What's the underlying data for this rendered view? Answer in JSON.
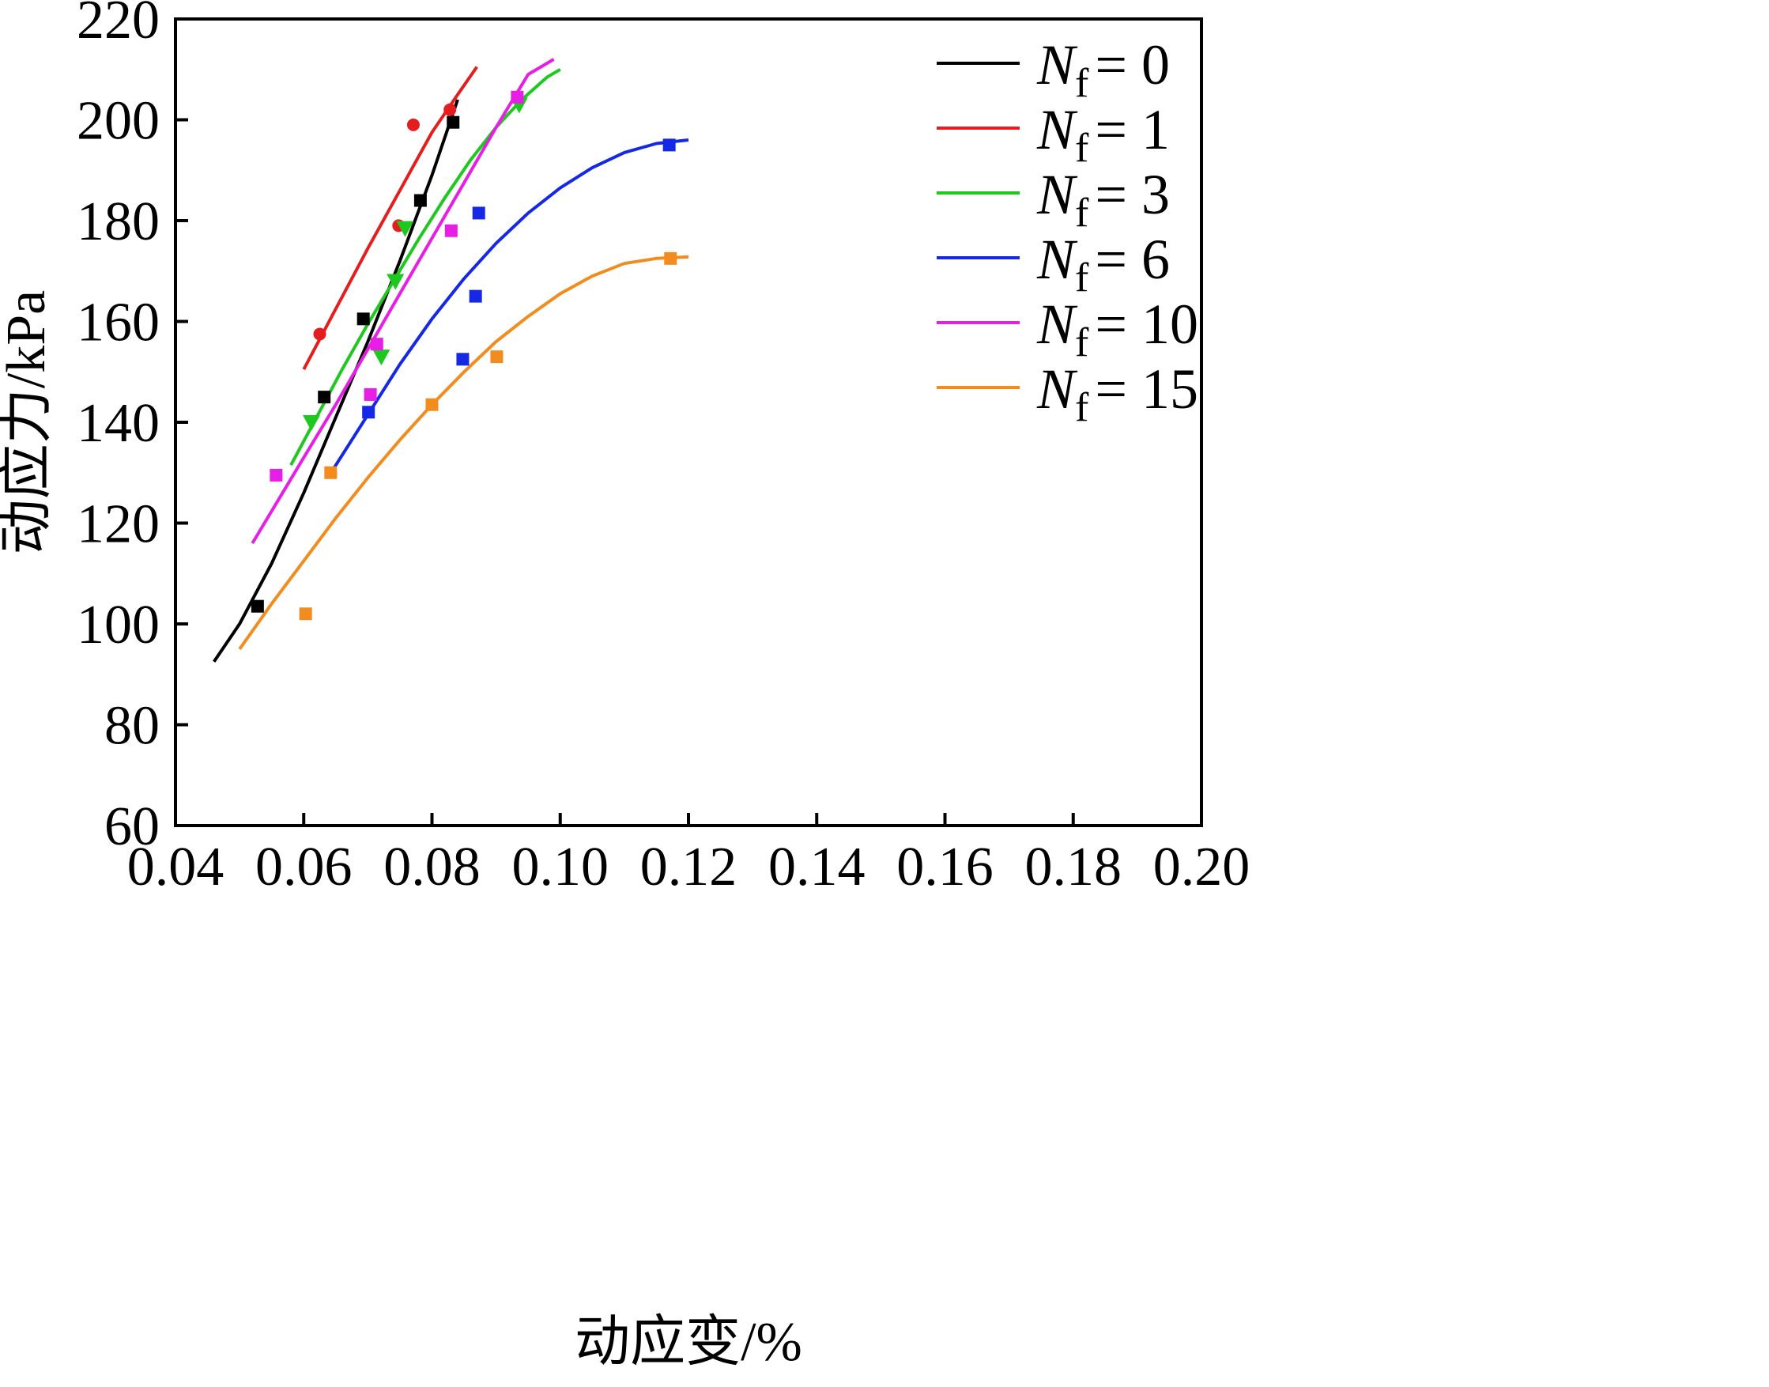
{
  "chart_data": {
    "type": "scatter",
    "title": "",
    "xlabel": "动应变/%",
    "ylabel": "动应力/kPa",
    "xlim": [
      0.04,
      0.2
    ],
    "ylim": [
      60,
      220
    ],
    "xticks": [
      0.04,
      0.06,
      0.08,
      0.1,
      0.12,
      0.14,
      0.16,
      0.18,
      0.2
    ],
    "xtick_labels": [
      "0.04",
      "0.06",
      "0.08",
      "0.10",
      "0.12",
      "0.14",
      "0.16",
      "0.18",
      "0.20"
    ],
    "yticks": [
      60,
      80,
      100,
      120,
      140,
      160,
      180,
      200,
      220
    ],
    "ytick_labels": [
      "60",
      "80",
      "100",
      "120",
      "140",
      "160",
      "180",
      "200",
      "220"
    ],
    "legend_position": "top-right",
    "series": [
      {
        "name": "N_f = 0",
        "legend_main": "N",
        "legend_sub": "f",
        "legend_value": "= 0",
        "color": "#000000",
        "marker": "square",
        "points": [
          [
            0.0528,
            103.5
          ],
          [
            0.0632,
            145.0
          ],
          [
            0.0693,
            160.5
          ],
          [
            0.0782,
            184.0
          ],
          [
            0.0833,
            199.5
          ]
        ],
        "fit": [
          [
            0.046,
            92.5
          ],
          [
            0.05,
            100.0
          ],
          [
            0.055,
            112.0
          ],
          [
            0.06,
            126.0
          ],
          [
            0.065,
            141.0
          ],
          [
            0.07,
            156.0
          ],
          [
            0.075,
            172.0
          ],
          [
            0.08,
            189.0
          ],
          [
            0.084,
            204.0
          ]
        ]
      },
      {
        "name": "N_f = 1",
        "legend_main": "N",
        "legend_sub": "f",
        "legend_value": "= 1",
        "color": "#e41e1e",
        "marker": "circle",
        "points": [
          [
            0.0625,
            157.5
          ],
          [
            0.0748,
            179.0
          ],
          [
            0.0771,
            199.0
          ],
          [
            0.0828,
            202.0
          ]
        ],
        "fit": [
          [
            0.06,
            150.5
          ],
          [
            0.065,
            162.5
          ],
          [
            0.07,
            174.5
          ],
          [
            0.075,
            186.0
          ],
          [
            0.08,
            197.5
          ],
          [
            0.084,
            205.0
          ],
          [
            0.087,
            210.5
          ]
        ]
      },
      {
        "name": "N_f = 3",
        "legend_main": "N",
        "legend_sub": "f",
        "legend_value": "= 3",
        "color": "#1ec81e",
        "marker": "triangle-down",
        "points": [
          [
            0.0612,
            140.0
          ],
          [
            0.0721,
            153.0
          ],
          [
            0.0743,
            168.0
          ],
          [
            0.0758,
            178.5
          ],
          [
            0.0936,
            203.0
          ]
        ],
        "fit": [
          [
            0.058,
            131.5
          ],
          [
            0.062,
            141.0
          ],
          [
            0.066,
            150.5
          ],
          [
            0.07,
            159.5
          ],
          [
            0.074,
            168.0
          ],
          [
            0.078,
            176.5
          ],
          [
            0.082,
            184.5
          ],
          [
            0.086,
            192.0
          ],
          [
            0.09,
            198.5
          ],
          [
            0.094,
            204.0
          ],
          [
            0.098,
            208.5
          ],
          [
            0.1,
            210.0
          ]
        ]
      },
      {
        "name": "N_f = 6",
        "legend_main": "N",
        "legend_sub": "f",
        "legend_value": "= 6",
        "color": "#1428e6",
        "marker": "square",
        "points": [
          [
            0.0701,
            142.0
          ],
          [
            0.0848,
            152.5
          ],
          [
            0.0868,
            165.0
          ],
          [
            0.0873,
            181.5
          ],
          [
            0.117,
            195.0
          ]
        ],
        "fit": [
          [
            0.0645,
            130.5
          ],
          [
            0.07,
            141.5
          ],
          [
            0.075,
            151.5
          ],
          [
            0.08,
            160.5
          ],
          [
            0.085,
            168.5
          ],
          [
            0.09,
            175.5
          ],
          [
            0.095,
            181.5
          ],
          [
            0.1,
            186.5
          ],
          [
            0.105,
            190.5
          ],
          [
            0.11,
            193.5
          ],
          [
            0.115,
            195.3
          ],
          [
            0.12,
            196.0
          ]
        ]
      },
      {
        "name": "N_f = 10",
        "legend_main": "N",
        "legend_sub": "f",
        "legend_value": "= 10",
        "color": "#e61ee6",
        "marker": "square",
        "points": [
          [
            0.0557,
            129.5
          ],
          [
            0.0704,
            145.5
          ],
          [
            0.0714,
            155.5
          ],
          [
            0.083,
            178.0
          ],
          [
            0.0933,
            204.5
          ]
        ],
        "fit": [
          [
            0.052,
            116.0
          ],
          [
            0.056,
            124.5
          ],
          [
            0.06,
            133.0
          ],
          [
            0.065,
            143.5
          ],
          [
            0.07,
            154.5
          ],
          [
            0.075,
            165.5
          ],
          [
            0.08,
            176.5
          ],
          [
            0.085,
            187.5
          ],
          [
            0.09,
            198.5
          ],
          [
            0.095,
            209.0
          ],
          [
            0.099,
            212.0
          ]
        ]
      },
      {
        "name": "N_f = 15",
        "legend_main": "N",
        "legend_sub": "f",
        "legend_value": "= 15",
        "color": "#f28c1e",
        "marker": "square",
        "points": [
          [
            0.0603,
            102.0
          ],
          [
            0.0642,
            130.0
          ],
          [
            0.08,
            143.5
          ],
          [
            0.0901,
            153.0
          ],
          [
            0.1172,
            172.5
          ]
        ],
        "fit": [
          [
            0.05,
            95.0
          ],
          [
            0.055,
            104.0
          ],
          [
            0.06,
            112.5
          ],
          [
            0.065,
            121.0
          ],
          [
            0.07,
            129.0
          ],
          [
            0.075,
            136.5
          ],
          [
            0.08,
            143.5
          ],
          [
            0.085,
            150.0
          ],
          [
            0.09,
            156.0
          ],
          [
            0.095,
            161.0
          ],
          [
            0.1,
            165.5
          ],
          [
            0.105,
            169.0
          ],
          [
            0.11,
            171.5
          ],
          [
            0.115,
            172.5
          ],
          [
            0.12,
            172.8
          ]
        ]
      }
    ]
  }
}
